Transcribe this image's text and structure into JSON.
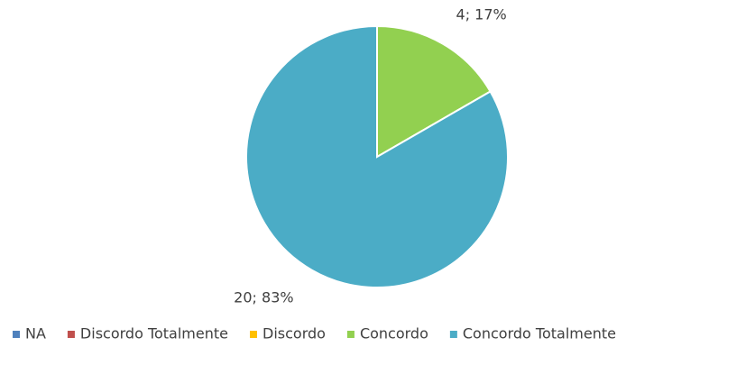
{
  "chart_data": {
    "type": "pie",
    "categories": [
      "NA",
      "Discordo Totalmente",
      "Discordo",
      "Concordo",
      "Concordo Totalmente"
    ],
    "values": [
      0,
      0,
      0,
      4,
      20
    ],
    "value_labels": [
      null,
      null,
      null,
      "4; 17%",
      "20; 83%"
    ],
    "colors": [
      "#4f81bd",
      "#c0504d",
      "#ffc000",
      "#92d050",
      "#4bacc6"
    ],
    "legend": "bottom"
  }
}
